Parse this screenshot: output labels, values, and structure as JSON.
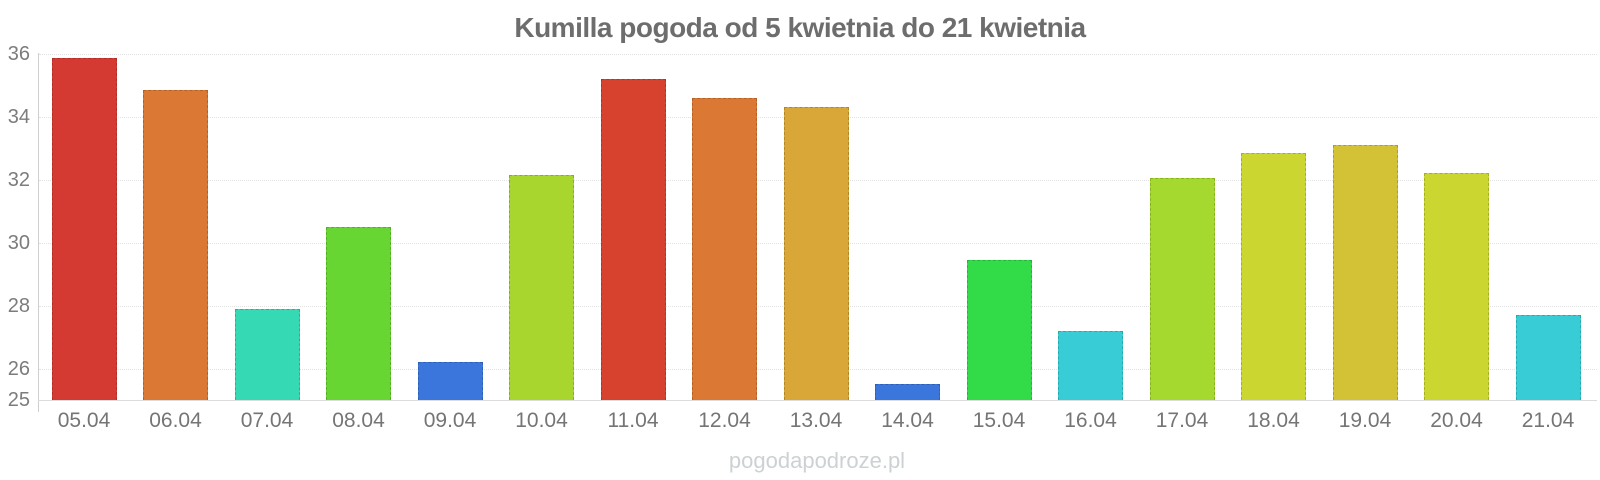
{
  "watermark": "pogodapodroze.pl",
  "chart_data": {
    "type": "bar",
    "title": "Kumilla pogoda od 5 kwietnia do 21 kwietnia",
    "xlabel": "",
    "ylabel": "",
    "ylim": [
      25,
      36
    ],
    "yticks": [
      25,
      26,
      28,
      30,
      32,
      34,
      36
    ],
    "grid": "horizontal dotted gridlines at y ticks",
    "legend": "none",
    "categories": [
      "05.04",
      "06.04",
      "07.04",
      "08.04",
      "09.04",
      "10.04",
      "11.04",
      "12.04",
      "13.04",
      "14.04",
      "15.04",
      "16.04",
      "17.04",
      "18.04",
      "19.04",
      "20.04",
      "21.04"
    ],
    "values": [
      35.85,
      34.85,
      27.9,
      30.5,
      26.2,
      32.15,
      35.2,
      34.6,
      34.3,
      25.5,
      29.45,
      27.2,
      32.05,
      32.85,
      33.1,
      32.2,
      27.7
    ],
    "bar_colors": [
      "#d43a31",
      "#db7834",
      "#35dab4",
      "#68d632",
      "#3a76dc",
      "#a8d62f",
      "#d7422f",
      "#db7834",
      "#d8a737",
      "#3a76dc",
      "#31dc48",
      "#38cdd6",
      "#a6d92f",
      "#cbd730",
      "#d3c236",
      "#cbd730",
      "#38cdd6"
    ]
  }
}
